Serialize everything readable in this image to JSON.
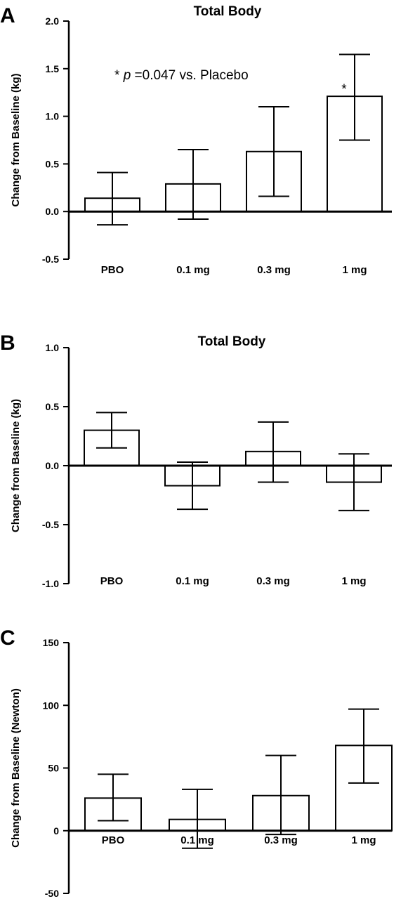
{
  "chart_data": [
    {
      "panel_letter": "A",
      "type": "bar",
      "title": "Total Body",
      "ylabel": "Change from Baseline (kg)",
      "xlabel": "",
      "categories": [
        "PBO",
        "0.1 mg",
        "0.3 mg",
        "1 mg"
      ],
      "values": [
        0.14,
        0.29,
        0.63,
        1.21
      ],
      "error_low": [
        -0.14,
        -0.08,
        0.16,
        0.75
      ],
      "error_high": [
        0.41,
        0.65,
        1.1,
        1.65
      ],
      "ylim": [
        -0.5,
        2.0
      ],
      "yticks": [
        -0.5,
        0.0,
        0.5,
        1.0,
        1.5,
        2.0
      ],
      "ytick_labels": [
        "-0.5",
        "0.0",
        "0.5",
        "1.0",
        "1.5",
        "2.0"
      ],
      "annotations": [
        {
          "text_prefix": "* ",
          "text_italic": "p",
          "text_suffix": " =0.047 vs. Placebo"
        }
      ],
      "markers": [
        {
          "category": "1 mg",
          "text": "*"
        }
      ]
    },
    {
      "panel_letter": "B",
      "type": "bar",
      "title": "Total Body",
      "ylabel": "Change from Baseline (kg)",
      "xlabel": "",
      "categories": [
        "PBO",
        "0.1 mg",
        "0.3 mg",
        "1 mg"
      ],
      "values": [
        0.3,
        -0.17,
        0.12,
        -0.14
      ],
      "error_low": [
        0.15,
        -0.37,
        -0.14,
        -0.38
      ],
      "error_high": [
        0.45,
        0.03,
        0.37,
        0.1
      ],
      "ylim": [
        -1.0,
        1.0
      ],
      "yticks": [
        -1.0,
        -0.5,
        0.0,
        0.5,
        1.0
      ],
      "ytick_labels": [
        "-1.0",
        "-0.5",
        "0.0",
        "0.5",
        "1.0"
      ],
      "annotations": [],
      "markers": []
    },
    {
      "panel_letter": "C",
      "type": "bar",
      "title": "",
      "ylabel": "Change from Baseline (Newton)",
      "xlabel": "",
      "categories": [
        "PBO",
        "0.1 mg",
        "0.3 mg",
        "1 mg"
      ],
      "values": [
        26,
        9,
        28,
        68
      ],
      "error_low": [
        8,
        -14,
        -3,
        38
      ],
      "error_high": [
        45,
        33,
        60,
        97
      ],
      "ylim": [
        -50,
        150
      ],
      "yticks": [
        -50,
        0,
        50,
        100,
        150
      ],
      "ytick_labels": [
        "-50",
        "0",
        "50",
        "100",
        "150"
      ],
      "annotations": [],
      "markers": []
    }
  ]
}
